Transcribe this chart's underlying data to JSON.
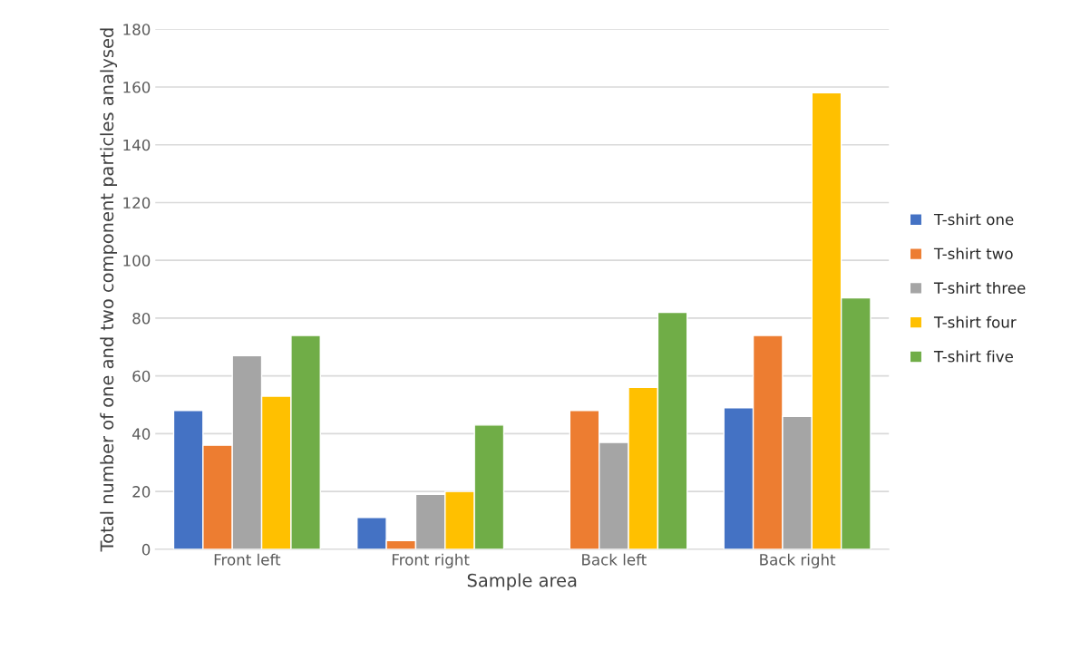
{
  "chart_data": {
    "type": "bar",
    "xlabel": "Sample area",
    "ylabel": "Total number of one and two component particles analysed",
    "categories": [
      "Front left",
      "Front right",
      "Back left",
      "Back right"
    ],
    "series": [
      {
        "name": "T-shirt one",
        "color": "#4472c4",
        "values": [
          48,
          11,
          null,
          49
        ]
      },
      {
        "name": "T-shirt two",
        "color": "#ed7d31",
        "values": [
          36,
          3,
          48,
          74
        ]
      },
      {
        "name": "T-shirt three",
        "color": "#a5a5a5",
        "values": [
          67,
          19,
          37,
          46
        ]
      },
      {
        "name": "T-shirt four",
        "color": "#ffc000",
        "values": [
          53,
          20,
          56,
          158
        ]
      },
      {
        "name": "T-shirt five",
        "color": "#70ad47",
        "values": [
          74,
          43,
          82,
          87
        ]
      }
    ],
    "ylim": [
      0,
      180
    ],
    "yticks": [
      0,
      20,
      40,
      60,
      80,
      100,
      120,
      140,
      160,
      180
    ],
    "grid": "y",
    "legend": "right"
  }
}
